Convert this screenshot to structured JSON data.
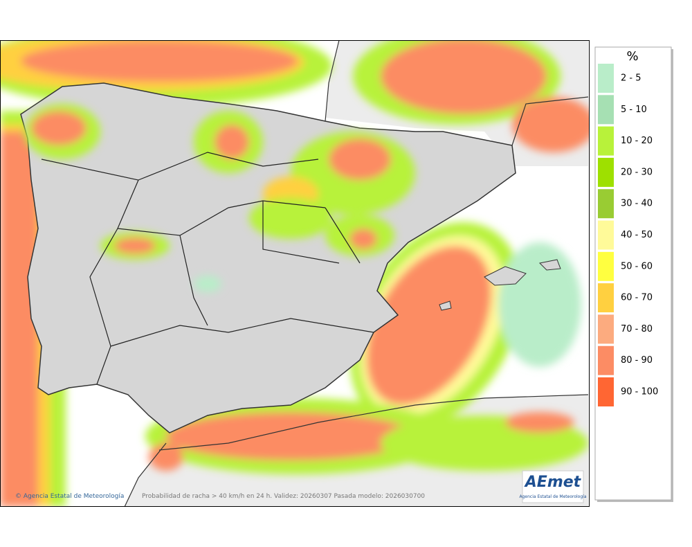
{
  "legend": {
    "title": "%",
    "items": [
      {
        "label": "2 - 5",
        "color": "#b9edc9"
      },
      {
        "label": "5 - 10",
        "color": "#a6e0b3"
      },
      {
        "label": "10 - 20",
        "color": "#b8f23a"
      },
      {
        "label": "20 - 30",
        "color": "#9ee000"
      },
      {
        "label": "30 - 40",
        "color": "#99cc33"
      },
      {
        "label": "40 - 50",
        "color": "#fffa99"
      },
      {
        "label": "50 - 60",
        "color": "#ffff40"
      },
      {
        "label": "60 - 70",
        "color": "#ffd040"
      },
      {
        "label": "70 - 80",
        "color": "#fcab7f"
      },
      {
        "label": "80 - 90",
        "color": "#fc8c64"
      },
      {
        "label": "90 - 100",
        "color": "#ff6633"
      }
    ]
  },
  "footer": {
    "credit": "© Agencia Estatal de Meteorología",
    "caption": "Probabilidad de racha > 40 km/h en 24 h. Validez: 20260307 Pasada modelo: 2026030700"
  },
  "logo": {
    "name": "AEmet",
    "subtitle": "Agencia Estatal de Meteorología"
  }
}
